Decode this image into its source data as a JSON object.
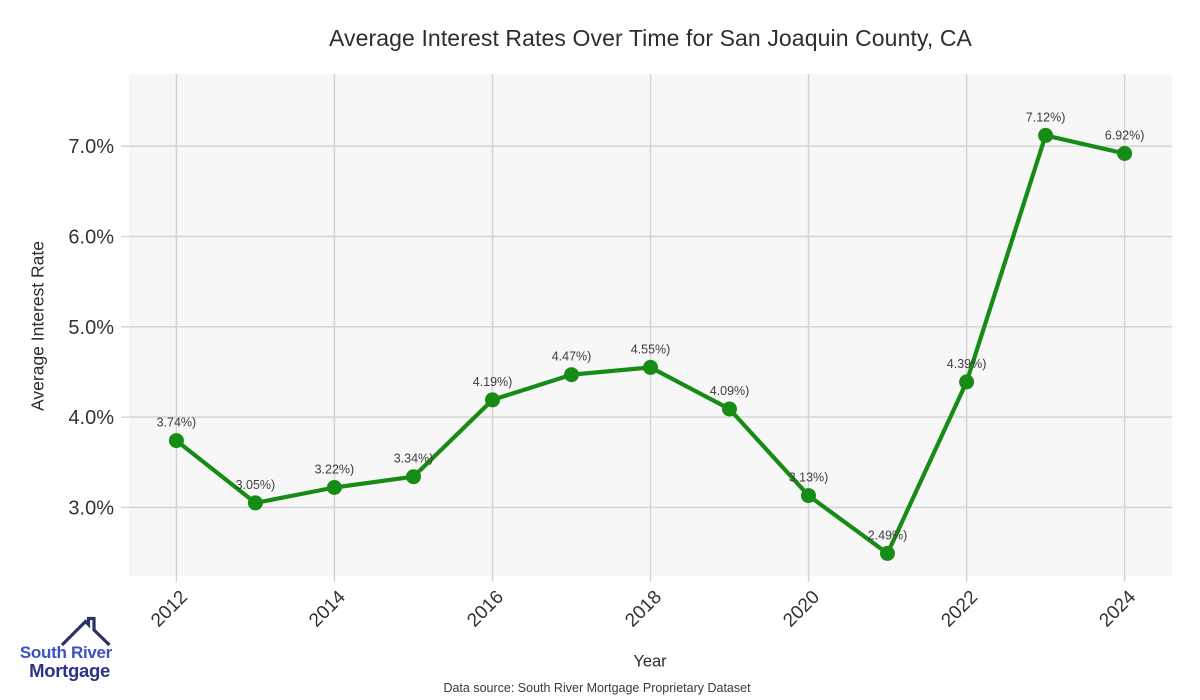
{
  "title": "Average Interest Rates Over Time for San Joaquin County, CA",
  "footer": {
    "text": "Data source: South River Mortgage Proprietary Dataset"
  },
  "logo": {
    "line1": "South River",
    "line2": "Mortgage",
    "roof_color": "#2b3166",
    "line1_color": "#3b52bd",
    "line2_color": "#2d3386"
  },
  "chart_data": {
    "type": "line",
    "title": "Average Interest Rates Over Time for San Joaquin County, CA",
    "xlabel": "Year",
    "ylabel": "Average Interest Rate",
    "x": [
      2012,
      2013,
      2014,
      2015,
      2016,
      2017,
      2018,
      2019,
      2020,
      2021,
      2022,
      2023,
      2024
    ],
    "values": [
      3.74,
      3.05,
      3.22,
      3.34,
      4.19,
      4.47,
      4.55,
      4.09,
      3.13,
      2.49,
      4.39,
      7.12,
      6.92
    ],
    "point_labels": [
      "3.74%)",
      "3.05%)",
      "3.22%)",
      "3.34%)",
      "4.19%)",
      "4.47%)",
      "4.55%)",
      "4.09%)",
      "3.13%)",
      "2.49%)",
      "4.39%)",
      "7.12%)",
      "6.92%)"
    ],
    "x_ticks": [
      2012,
      2014,
      2016,
      2018,
      2020,
      2022,
      2024
    ],
    "y_ticks": [
      3,
      4,
      5,
      6,
      7
    ],
    "y_tick_labels": [
      "3.0%",
      "4.0%",
      "5.0%",
      "6.0%",
      "7.0%"
    ],
    "xlim": [
      2011.4,
      2024.6
    ],
    "ylim": [
      2.24,
      7.8
    ],
    "grid": true,
    "legend": "none",
    "line_color": "#168c16",
    "marker_color": "#168c16",
    "plot_bg": "#f7f7f7",
    "grid_color": "#d2d2d2",
    "tick_label_color": "#333333",
    "point_label_color": "#3d3d3d"
  }
}
